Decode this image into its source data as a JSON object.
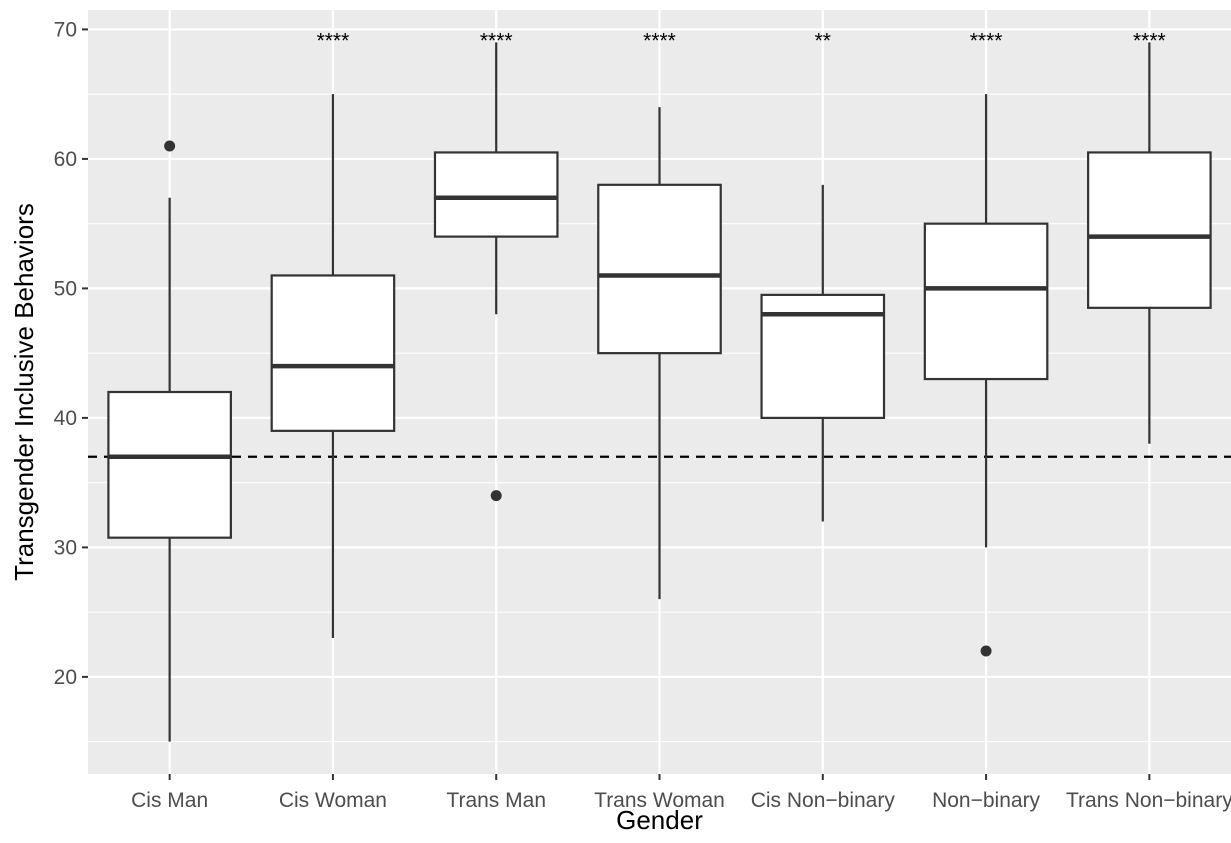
{
  "chart_data": {
    "type": "box",
    "xlabel": "Gender",
    "ylabel": "Transgender Inclusive Behaviors",
    "ylim": [
      12.5,
      71.5
    ],
    "yticks": [
      20,
      30,
      40,
      50,
      60,
      70
    ],
    "reference_line": {
      "y": 37,
      "style": "dashed"
    },
    "grid": true,
    "categories": [
      "Cis Man",
      "Cis Woman",
      "Trans Man",
      "Trans Woman",
      "Cis Non−binary",
      "Non−binary",
      "Trans Non−binary"
    ],
    "boxes": [
      {
        "category": "Cis Man",
        "whisker_low": 15,
        "q1": 30.75,
        "median": 37,
        "q3": 42,
        "whisker_high": 57,
        "outliers": [
          61
        ],
        "significance": ""
      },
      {
        "category": "Cis Woman",
        "whisker_low": 23,
        "q1": 39,
        "median": 44,
        "q3": 51,
        "whisker_high": 65,
        "outliers": [],
        "significance": "****"
      },
      {
        "category": "Trans Man",
        "whisker_low": 48,
        "q1": 54,
        "median": 57,
        "q3": 60.5,
        "whisker_high": 69,
        "outliers": [
          34
        ],
        "significance": "****"
      },
      {
        "category": "Trans Woman",
        "whisker_low": 26,
        "q1": 45,
        "median": 51,
        "q3": 58,
        "whisker_high": 64,
        "outliers": [],
        "significance": "****"
      },
      {
        "category": "Cis Non−binary",
        "whisker_low": 32,
        "q1": 40,
        "median": 48,
        "q3": 49.5,
        "whisker_high": 58,
        "outliers": [],
        "significance": "**"
      },
      {
        "category": "Non−binary",
        "whisker_low": 30,
        "q1": 43,
        "median": 50,
        "q3": 55,
        "whisker_high": 65,
        "outliers": [
          22
        ],
        "significance": "****"
      },
      {
        "category": "Trans Non−binary",
        "whisker_low": 38,
        "q1": 48.5,
        "median": 54,
        "q3": 60.5,
        "whisker_high": 69,
        "outliers": [],
        "significance": "****"
      }
    ],
    "colors": {
      "panel_background": "#ebebeb",
      "grid_major": "#ffffff",
      "box_fill": "#ffffff",
      "box_stroke": "#333333",
      "reference_line": "#000000",
      "tick_text": "#4d4d4d",
      "tick_mark": "#333333"
    }
  }
}
